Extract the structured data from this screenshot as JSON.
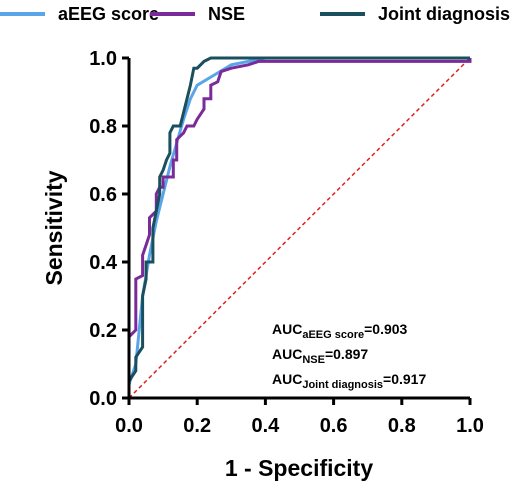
{
  "chart_data": {
    "type": "line",
    "xlabel": "1 - Specificity",
    "ylabel": "Sensitivity",
    "xlim": [
      0,
      1
    ],
    "ylim": [
      0,
      1
    ],
    "xticks": [
      {
        "value": 0,
        "label": "0.0"
      },
      {
        "value": 0.2,
        "label": "0.2"
      },
      {
        "value": 0.4,
        "label": "0.4"
      },
      {
        "value": 0.6,
        "label": "0.6"
      },
      {
        "value": 0.8,
        "label": "0.8"
      },
      {
        "value": 1,
        "label": "1.0"
      }
    ],
    "yticks": [
      {
        "value": 0,
        "label": "0.0"
      },
      {
        "value": 0.2,
        "label": "0.2"
      },
      {
        "value": 0.4,
        "label": "0.4"
      },
      {
        "value": 0.6,
        "label": "0.6"
      },
      {
        "value": 0.8,
        "label": "0.8"
      },
      {
        "value": 1,
        "label": "1.0"
      }
    ],
    "diagonal": true,
    "diagonal_color": "#e02020",
    "series": [
      {
        "name": "aEEG score",
        "color": "#5aa5e8",
        "x": [
          0,
          0,
          0.02,
          0.04,
          0.06,
          0.08,
          0.1,
          0.12,
          0.14,
          0.16,
          0.18,
          0.2,
          0.25,
          0.3,
          0.4,
          1
        ],
        "values": [
          0,
          0.04,
          0.1,
          0.3,
          0.42,
          0.52,
          0.6,
          0.68,
          0.75,
          0.82,
          0.88,
          0.92,
          0.95,
          0.98,
          1,
          1
        ]
      },
      {
        "name": "NSE",
        "color": "#7b2a9a",
        "x": [
          0,
          0,
          0.02,
          0.02,
          0.04,
          0.04,
          0.05,
          0.06,
          0.06,
          0.08,
          0.08,
          0.09,
          0.1,
          0.1,
          0.13,
          0.13,
          0.14,
          0.14,
          0.16,
          0.17,
          0.19,
          0.2,
          0.22,
          0.22,
          0.24,
          0.24,
          0.26,
          0.27,
          0.3,
          0.35,
          0.38,
          1,
          1
        ],
        "values": [
          0,
          0.18,
          0.2,
          0.35,
          0.36,
          0.42,
          0.45,
          0.48,
          0.53,
          0.55,
          0.6,
          0.62,
          0.62,
          0.65,
          0.65,
          0.7,
          0.7,
          0.76,
          0.78,
          0.8,
          0.8,
          0.82,
          0.85,
          0.88,
          0.88,
          0.92,
          0.93,
          0.96,
          0.97,
          0.98,
          0.99,
          0.99,
          1
        ]
      },
      {
        "name": "Joint diagnosis",
        "color": "#1a4f5e",
        "x": [
          0,
          0,
          0.02,
          0.02,
          0.04,
          0.04,
          0.05,
          0.05,
          0.07,
          0.07,
          0.08,
          0.09,
          0.09,
          0.1,
          0.11,
          0.12,
          0.12,
          0.13,
          0.15,
          0.16,
          0.17,
          0.18,
          0.19,
          0.2,
          0.22,
          0.24,
          1
        ],
        "values": [
          0,
          0.05,
          0.08,
          0.12,
          0.15,
          0.3,
          0.35,
          0.4,
          0.4,
          0.5,
          0.55,
          0.6,
          0.65,
          0.67,
          0.7,
          0.72,
          0.78,
          0.8,
          0.8,
          0.84,
          0.88,
          0.92,
          0.97,
          0.97,
          0.99,
          1,
          1
        ]
      }
    ],
    "annotations": [
      {
        "main": "AUC",
        "sub": "aEEG score",
        "rest": "=0.903"
      },
      {
        "main": "AUC",
        "sub": "NSE",
        "rest": "=0.897"
      },
      {
        "main": "AUC",
        "sub": "Joint diagnosis",
        "rest": "=0.917"
      }
    ]
  }
}
